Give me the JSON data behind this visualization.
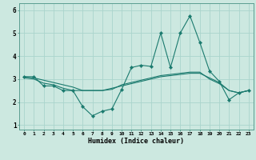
{
  "title": "",
  "xlabel": "Humidex (Indice chaleur)",
  "background_color": "#cce8e0",
  "grid_color": "#aad4cc",
  "line_color": "#1a7a6e",
  "xlim": [
    -0.5,
    23.5
  ],
  "ylim": [
    0.8,
    6.3
  ],
  "yticks": [
    1,
    2,
    3,
    4,
    5,
    6
  ],
  "xticks": [
    0,
    1,
    2,
    3,
    4,
    5,
    6,
    7,
    8,
    9,
    10,
    11,
    12,
    13,
    14,
    15,
    16,
    17,
    18,
    19,
    20,
    21,
    22,
    23
  ],
  "line1_x": [
    0,
    1,
    2,
    3,
    4,
    5,
    6,
    7,
    8,
    9,
    10,
    11,
    12,
    13,
    14,
    15,
    16,
    17,
    18,
    19,
    20,
    21,
    22,
    23
  ],
  "line1_y": [
    3.1,
    3.1,
    2.7,
    2.7,
    2.5,
    2.5,
    1.8,
    1.4,
    1.6,
    1.7,
    2.55,
    3.5,
    3.6,
    3.55,
    5.0,
    3.5,
    5.0,
    5.75,
    4.6,
    3.35,
    2.9,
    2.1,
    2.4,
    2.5
  ],
  "line2_x": [
    0,
    1,
    2,
    3,
    4,
    5,
    6,
    7,
    8,
    9,
    10,
    11,
    12,
    13,
    14,
    15,
    16,
    17,
    18,
    19,
    20,
    21,
    22,
    23
  ],
  "line2_y": [
    3.05,
    3.0,
    2.82,
    2.75,
    2.6,
    2.5,
    2.5,
    2.5,
    2.5,
    2.55,
    2.75,
    2.85,
    2.95,
    3.05,
    3.15,
    3.2,
    3.25,
    3.3,
    3.3,
    3.0,
    2.8,
    2.5,
    2.4,
    2.5
  ],
  "line3_x": [
    0,
    1,
    2,
    3,
    4,
    5,
    6,
    7,
    8,
    9,
    10,
    11,
    12,
    13,
    14,
    15,
    16,
    17,
    18,
    19,
    20,
    21,
    22,
    23
  ],
  "line3_y": [
    3.1,
    3.05,
    2.95,
    2.85,
    2.75,
    2.65,
    2.5,
    2.5,
    2.5,
    2.6,
    2.7,
    2.8,
    2.9,
    3.0,
    3.1,
    3.15,
    3.2,
    3.25,
    3.25,
    3.05,
    2.85,
    2.5,
    2.4,
    2.5
  ]
}
